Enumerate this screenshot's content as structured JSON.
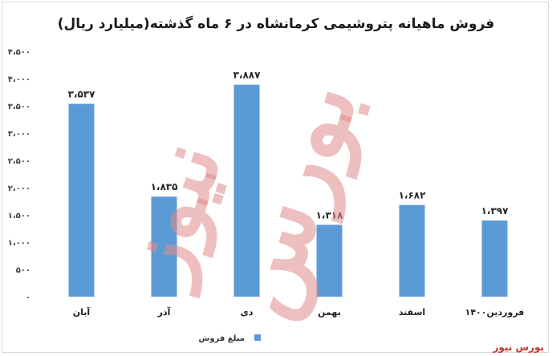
{
  "chart_data": {
    "type": "bar",
    "title": "فروش ماهیانه پتروشیمی کرمانشاه در ۶ ماه گذشته(میلیارد ریال)",
    "categories": [
      "آبان",
      "آذر",
      "دی",
      "بهمن",
      "اسفند",
      "فروردین۱۴۰۰"
    ],
    "series": [
      {
        "name": "مبلغ فروش",
        "values": [
          3537,
          1835,
          3887,
          1318,
          1682,
          1397
        ],
        "labels": [
          "۳،۵۳۷",
          "۱،۸۳۵",
          "۳،۸۸۷",
          "۱،۳۱۸",
          "۱،۶۸۲",
          "۱،۳۹۷"
        ],
        "color": "#5b9bd5"
      }
    ],
    "ylim": [
      0,
      4500
    ],
    "yticks": [
      0,
      500,
      1000,
      1500,
      2000,
      2500,
      3000,
      3500,
      4000,
      4500
    ],
    "ytick_labels": [
      "۰",
      "۵۰۰",
      "۱،۰۰۰",
      "۱،۵۰۰",
      "۲،۰۰۰",
      "۲،۵۰۰",
      "۳،۰۰۰",
      "۳،۵۰۰",
      "۴،۰۰۰",
      "۴،۵۰۰"
    ],
    "grid": false,
    "legend": "bottom"
  },
  "watermark": {
    "line1": "بورس",
    "line2": "نیوز"
  },
  "brand": "بورس نیوز"
}
